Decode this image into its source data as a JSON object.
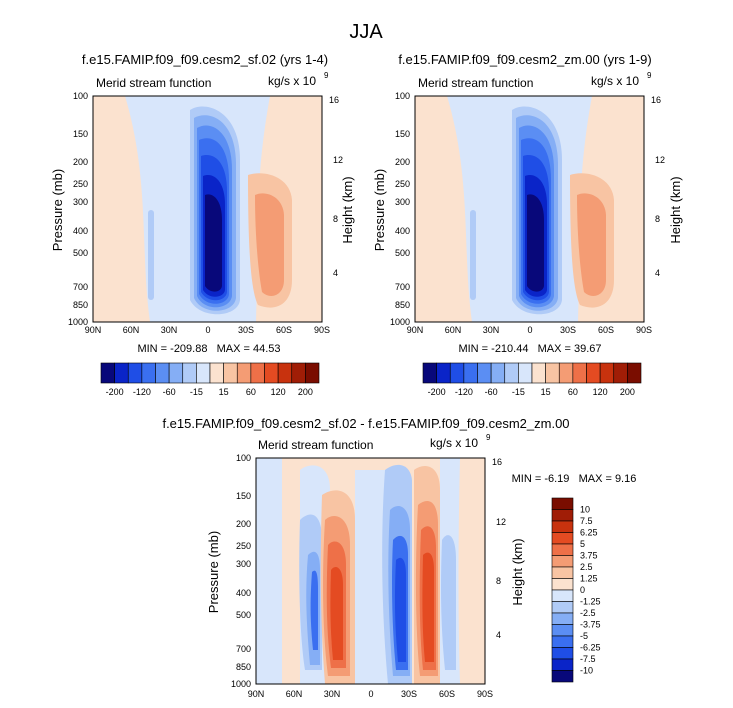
{
  "page_title": "JJA",
  "colors": {
    "neg": [
      "#08087a",
      "#0a24c8",
      "#1f4ee6",
      "#3a6ff0",
      "#5b8ef3",
      "#85aef5",
      "#b0cbf7",
      "#d8e6fb"
    ],
    "pos": [
      "#fbe2cf",
      "#f8c4a3",
      "#f49c74",
      "#ee7048",
      "#e44b22",
      "#c8320e",
      "#a01d06",
      "#7a0d00"
    ]
  },
  "chart_data": [
    {
      "type": "contour",
      "title": "f.e15.FAMIP.f09_f09.cesm2_sf.02 (yrs 1-4)",
      "left_label": "Merid stream function",
      "units_label": "kg/s x 10",
      "units_exp": "9",
      "ylabel": "Pressure (mb)",
      "ylabel_right": "Height (km)",
      "x_ticks": [
        "90N",
        "60N",
        "30N",
        "0",
        "30S",
        "60S",
        "90S"
      ],
      "y_ticks": [
        "100",
        "150",
        "200",
        "250",
        "300",
        "400",
        "500",
        "700",
        "850",
        "1000"
      ],
      "y_ticks_right": [
        "16",
        "12",
        "8",
        "4"
      ],
      "stats": "MIN = -209.88   MAX = 44.53",
      "min": -209.88,
      "max": 44.53
    },
    {
      "type": "contour",
      "title": "f.e15.FAMIP.f09_f09.cesm2_zm.00 (yrs 1-9)",
      "left_label": "Merid stream function",
      "units_label": "kg/s x 10",
      "units_exp": "9",
      "ylabel": "Pressure (mb)",
      "ylabel_right": "Height (km)",
      "x_ticks": [
        "90N",
        "60N",
        "30N",
        "0",
        "30S",
        "60S",
        "90S"
      ],
      "y_ticks": [
        "100",
        "150",
        "200",
        "250",
        "300",
        "400",
        "500",
        "700",
        "850",
        "1000"
      ],
      "y_ticks_right": [
        "16",
        "12",
        "8",
        "4"
      ],
      "stats": "MIN = -210.44   MAX = 39.67",
      "min": -210.44,
      "max": 39.67
    },
    {
      "type": "contour",
      "title": "f.e15.FAMIP.f09_f09.cesm2_sf.02 - f.e15.FAMIP.f09_f09.cesm2_zm.00",
      "left_label": "Merid stream function",
      "units_label": "kg/s x 10",
      "units_exp": "9",
      "ylabel": "Pressure (mb)",
      "ylabel_right": "Height (km)",
      "x_ticks": [
        "90N",
        "60N",
        "30N",
        "0",
        "30S",
        "60S",
        "90S"
      ],
      "y_ticks": [
        "100",
        "150",
        "200",
        "250",
        "300",
        "400",
        "500",
        "700",
        "850",
        "1000"
      ],
      "y_ticks_right": [
        "16",
        "12",
        "8",
        "4"
      ],
      "stats": "MIN = -6.19   MAX = 9.16",
      "min": -6.19,
      "max": 9.16
    }
  ],
  "colorbar_top": {
    "levels": [
      "-200",
      "-120",
      "-60",
      "-15",
      "15",
      "60",
      "120",
      "200"
    ]
  },
  "colorbar_diff": {
    "levels": [
      "10",
      "7.5",
      "6.25",
      "5",
      "3.75",
      "2.5",
      "1.25",
      "0",
      "-1.25",
      "-2.5",
      "-3.75",
      "-5",
      "-6.25",
      "-7.5",
      "-10"
    ]
  }
}
